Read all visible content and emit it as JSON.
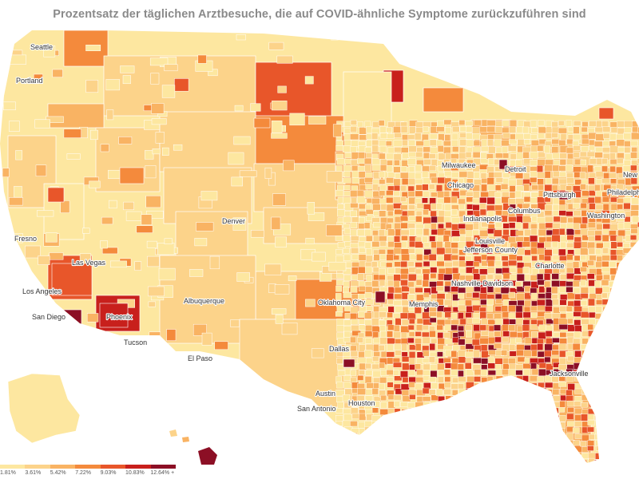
{
  "title": "Prozentsatz der täglichen Arztbesuche, die auf COVID-ähnliche Symptome zurückzuführen sind",
  "legend": {
    "ticks": [
      "1.81%",
      "3.61%",
      "5.42%",
      "7.22%",
      "9.03%",
      "10.83%",
      "12.64%"
    ],
    "suffix": "+",
    "colors": [
      "#fde7a0",
      "#fcd38a",
      "#f9b363",
      "#f48a3c",
      "#e8562a",
      "#c8201c",
      "#8c0f25"
    ]
  },
  "cities": [
    {
      "name": "Seattle"
    },
    {
      "name": "Portland"
    },
    {
      "name": "Fresno"
    },
    {
      "name": "Las Vegas"
    },
    {
      "name": "Los Angeles"
    },
    {
      "name": "San Diego"
    },
    {
      "name": "Phoenix"
    },
    {
      "name": "Tucson"
    },
    {
      "name": "Albuquerque"
    },
    {
      "name": "El Paso"
    },
    {
      "name": "Denver"
    },
    {
      "name": "Oklahoma City"
    },
    {
      "name": "Dallas"
    },
    {
      "name": "Austin"
    },
    {
      "name": "San Antonio"
    },
    {
      "name": "Houston"
    },
    {
      "name": "Memphis"
    },
    {
      "name": "Nashville-Davidson"
    },
    {
      "name": "Louisville"
    },
    {
      "name": "Jefferson County"
    },
    {
      "name": "Indianapolis"
    },
    {
      "name": "Chicago"
    },
    {
      "name": "Milwaukee"
    },
    {
      "name": "Detroit"
    },
    {
      "name": "Columbus"
    },
    {
      "name": "Pittsburgh"
    },
    {
      "name": "Washington"
    },
    {
      "name": "Philadelphia"
    },
    {
      "name": "New"
    },
    {
      "name": "Charlotte"
    },
    {
      "name": "Jacksonville"
    }
  ]
}
